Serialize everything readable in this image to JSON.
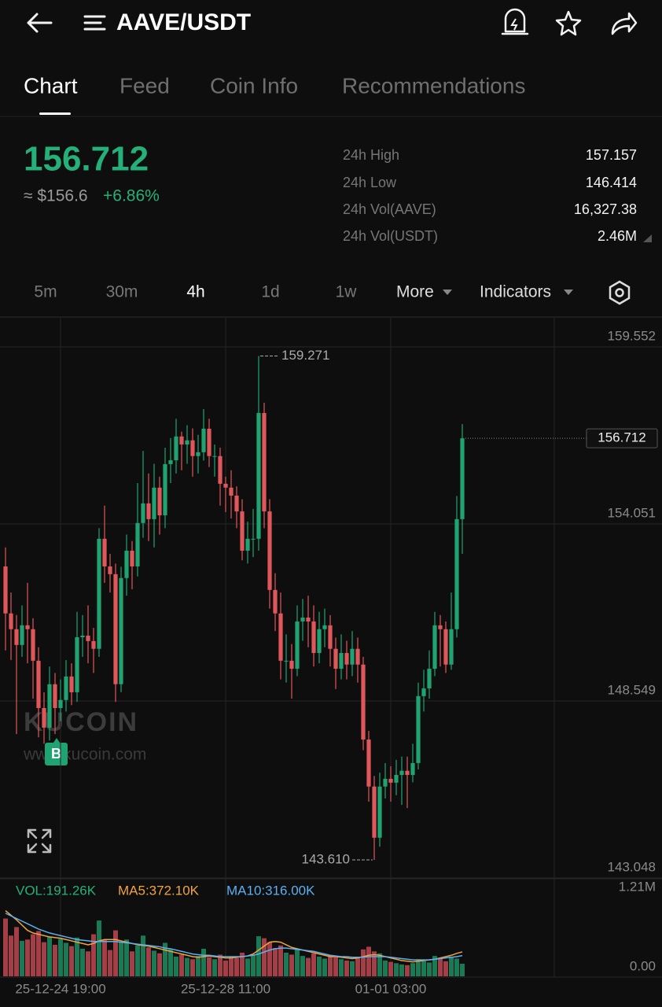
{
  "header": {
    "title": "AAVE/USDT"
  },
  "tabs": [
    "Chart",
    "Feed",
    "Coin Info",
    "Recommendations"
  ],
  "ticker": {
    "price": "156.712",
    "usd_price": "≈ $156.6",
    "change": "+6.86%"
  },
  "stats": [
    {
      "label": "24h High",
      "value": "157.157"
    },
    {
      "label": "24h Low",
      "value": "146.414"
    },
    {
      "label": "24h Vol(AAVE)",
      "value": "16,327.38"
    },
    {
      "label": "24h Vol(USDT)",
      "value": "2.46M"
    }
  ],
  "timeframes": [
    "5m",
    "30m",
    "4h",
    "1d",
    "1w"
  ],
  "menus": [
    "More",
    "Indicators"
  ],
  "watermark": {
    "brand": "KUCOIN",
    "site": "www.kucoin.com"
  },
  "marker": "B",
  "chart_data": [
    {
      "type": "candlestick",
      "categories": [
        null,
        null,
        null,
        null,
        null,
        null,
        null,
        null,
        null,
        null,
        "25-12-24 19:00",
        null,
        null,
        null,
        null,
        null,
        null,
        null,
        null,
        null,
        null,
        null,
        null,
        null,
        null,
        null,
        null,
        null,
        null,
        null,
        null,
        null,
        null,
        null,
        null,
        null,
        null,
        null,
        null,
        null,
        "25-12-28 11:00",
        null,
        null,
        null,
        null,
        null,
        null,
        null,
        null,
        null,
        null,
        null,
        null,
        null,
        null,
        null,
        null,
        null,
        null,
        null,
        null,
        null,
        null,
        null,
        null,
        null,
        null,
        null,
        null,
        null,
        "01-01 03:00",
        null,
        null,
        null,
        null,
        null,
        null,
        null,
        null,
        null,
        null,
        null,
        null,
        null
      ],
      "open": [
        152.73,
        151.27,
        150.78,
        150.29,
        150.9,
        150.78,
        149.8,
        148.33,
        147.72,
        149.07,
        148.33,
        148.58,
        149.31,
        148.82,
        150.53,
        150.58,
        150.41,
        150.17,
        153.59,
        152.73,
        152.49,
        149.07,
        152.37,
        153.22,
        152.73,
        154.08,
        154.69,
        154.2,
        155.18,
        154.32,
        155.91,
        156.03,
        156.77,
        156.52,
        156.65,
        156.16,
        156.28,
        157.01,
        156.16,
        156.16,
        155.3,
        155.18,
        154.93,
        154.44,
        153.22,
        153.59,
        153.59,
        157.5,
        154.44,
        152.0,
        151.27,
        149.8,
        149.8,
        149.55,
        151.02,
        151.14,
        151.02,
        150.04,
        150.78,
        150.9,
        150.17,
        149.55,
        150.04,
        149.68,
        150.17,
        149.68,
        147.35,
        145.89,
        144.3,
        145.89,
        146.13,
        146.01,
        146.25,
        146.38,
        146.25,
        146.62,
        148.7,
        148.94,
        149.55,
        150.9,
        150.78,
        149.68,
        150.78,
        154.2
      ],
      "high": [
        153.32,
        151.92,
        151.22,
        151.52,
        152.22,
        151.12,
        150.22,
        148.82,
        149.62,
        149.42,
        149.22,
        149.82,
        149.72,
        151.32,
        151.22,
        151.52,
        150.82,
        153.92,
        154.62,
        153.12,
        152.82,
        152.72,
        153.72,
        153.52,
        155.32,
        156.32,
        155.62,
        155.92,
        155.52,
        156.42,
        156.72,
        157.32,
        156.92,
        157.12,
        157.02,
        156.82,
        157.62,
        157.32,
        156.52,
        156.42,
        155.52,
        155.72,
        155.22,
        154.82,
        154.12,
        154.52,
        159.271,
        157.82,
        154.82,
        152.52,
        151.92,
        150.62,
        150.32,
        151.52,
        151.72,
        151.82,
        151.52,
        151.32,
        151.42,
        151.22,
        150.52,
        150.62,
        150.42,
        150.72,
        150.52,
        149.92,
        147.62,
        146.22,
        146.32,
        146.62,
        146.52,
        146.72,
        146.82,
        146.82,
        147.22,
        149.12,
        149.52,
        150.12,
        151.32,
        151.22,
        151.02,
        151.92,
        154.92,
        157.157
      ],
      "low": [
        150.12,
        149.82,
        147.52,
        149.92,
        149.72,
        148.62,
        147.42,
        147.22,
        147.32,
        147.52,
        147.92,
        148.22,
        148.42,
        148.52,
        149.92,
        149.72,
        149.42,
        149.92,
        152.22,
        151.92,
        148.52,
        148.82,
        151.82,
        152.02,
        152.42,
        153.62,
        153.52,
        153.32,
        153.72,
        153.92,
        155.32,
        155.62,
        155.72,
        155.92,
        155.52,
        155.62,
        156.02,
        155.82,
        155.52,
        154.62,
        154.42,
        154.22,
        153.92,
        152.92,
        152.82,
        153.02,
        153.22,
        153.92,
        151.42,
        150.72,
        149.22,
        149.12,
        148.62,
        149.32,
        150.42,
        150.22,
        149.62,
        149.72,
        150.22,
        149.62,
        148.92,
        149.22,
        149.22,
        149.32,
        149.12,
        147.02,
        145.42,
        143.61,
        144.02,
        145.52,
        145.42,
        145.62,
        145.32,
        145.22,
        146.02,
        146.42,
        148.22,
        148.62,
        149.32,
        149.62,
        149.42,
        149.52,
        150.52,
        153.12
      ],
      "close": [
        151.27,
        150.78,
        150.29,
        150.9,
        150.78,
        149.8,
        148.33,
        147.72,
        149.07,
        148.33,
        148.58,
        149.31,
        148.82,
        150.53,
        150.58,
        150.41,
        150.17,
        153.59,
        152.73,
        152.49,
        149.07,
        152.37,
        153.22,
        152.73,
        154.08,
        154.69,
        154.2,
        155.18,
        154.32,
        155.91,
        156.03,
        156.77,
        156.52,
        156.65,
        156.16,
        156.28,
        157.01,
        156.16,
        156.16,
        155.3,
        155.18,
        154.93,
        154.44,
        153.22,
        153.59,
        153.59,
        157.5,
        154.44,
        152.0,
        151.27,
        149.8,
        149.8,
        149.55,
        151.02,
        151.14,
        151.02,
        150.04,
        150.78,
        150.9,
        150.17,
        149.55,
        150.04,
        149.68,
        150.17,
        149.68,
        147.35,
        145.89,
        144.3,
        145.89,
        146.13,
        146.01,
        146.25,
        146.38,
        146.25,
        146.62,
        148.7,
        148.94,
        149.55,
        150.9,
        150.78,
        149.68,
        150.78,
        154.2,
        156.712
      ],
      "up_color": "#1fa373",
      "down_color": "#e0575b",
      "ylim": [
        143.048,
        160.481
      ],
      "yticks": [
        159.552,
        154.051,
        148.549,
        143.048
      ],
      "grid": true,
      "high_marker": 159.271,
      "low_marker": {
        "value": 143.61,
        "label": "143.610"
      },
      "last_price": 156.712
    },
    {
      "type": "bar",
      "series": [
        {
          "name": "VOL:191.26K",
          "color": "#25b07a",
          "bar_up_color": "#1b7a56",
          "bar_down_color": "#a43f48",
          "values": [
            880000,
            620000,
            750000,
            540000,
            560000,
            640000,
            690000,
            520000,
            600000,
            480000,
            570000,
            510000,
            460000,
            590000,
            420000,
            380000,
            640000,
            850000,
            560000,
            400000,
            700000,
            520000,
            560000,
            380000,
            470000,
            620000,
            440000,
            390000,
            350000,
            510000,
            420000,
            300000,
            330000,
            280000,
            260000,
            310000,
            420000,
            290000,
            260000,
            330000,
            240000,
            300000,
            280000,
            360000,
            270000,
            320000,
            610000,
            580000,
            520000,
            430000,
            470000,
            360000,
            330000,
            420000,
            310000,
            280000,
            350000,
            300000,
            270000,
            320000,
            290000,
            260000,
            240000,
            230000,
            280000,
            410000,
            450000,
            380000,
            350000,
            240000,
            220000,
            200000,
            180000,
            170000,
            200000,
            260000,
            230000,
            210000,
            310000,
            280000,
            230000,
            300000,
            270000,
            191260
          ]
        },
        {
          "name": "MA5:372.10K",
          "color": "#f0a53a",
          "type": "line",
          "values": [
            1000000,
            930000,
            860000,
            780000,
            700000,
            660000,
            640000,
            620000,
            600000,
            590000,
            580000,
            560000,
            540000,
            520000,
            500000,
            480000,
            500000,
            540000,
            560000,
            560000,
            560000,
            540000,
            520000,
            500000,
            480000,
            470000,
            460000,
            440000,
            420000,
            400000,
            380000,
            360000,
            340000,
            320000,
            300000,
            290000,
            300000,
            310000,
            300000,
            290000,
            280000,
            280000,
            290000,
            300000,
            310000,
            340000,
            400000,
            460000,
            520000,
            530000,
            520000,
            480000,
            440000,
            420000,
            400000,
            380000,
            360000,
            340000,
            320000,
            300000,
            300000,
            290000,
            280000,
            270000,
            280000,
            300000,
            320000,
            330000,
            320000,
            300000,
            280000,
            260000,
            240000,
            230000,
            220000,
            230000,
            240000,
            250000,
            260000,
            280000,
            300000,
            320000,
            350000,
            372100
          ]
        },
        {
          "name": "MA10:316.00K",
          "color": "#5ab0f0",
          "type": "line",
          "values": [
            960000,
            920000,
            880000,
            840000,
            800000,
            760000,
            720000,
            690000,
            660000,
            640000,
            620000,
            600000,
            580000,
            560000,
            550000,
            540000,
            530000,
            530000,
            530000,
            530000,
            530000,
            520000,
            510000,
            500000,
            490000,
            480000,
            470000,
            460000,
            450000,
            430000,
            420000,
            400000,
            380000,
            360000,
            340000,
            330000,
            320000,
            320000,
            310000,
            300000,
            300000,
            300000,
            300000,
            300000,
            310000,
            320000,
            340000,
            370000,
            400000,
            420000,
            430000,
            430000,
            420000,
            410000,
            400000,
            390000,
            380000,
            360000,
            340000,
            320000,
            310000,
            300000,
            300000,
            290000,
            290000,
            290000,
            300000,
            300000,
            300000,
            300000,
            290000,
            280000,
            270000,
            260000,
            250000,
            250000,
            250000,
            250000,
            260000,
            270000,
            280000,
            290000,
            300000,
            316000
          ]
        }
      ],
      "ylim": [
        0,
        1210000
      ],
      "yticks": [
        {
          "value": 1210000,
          "label": "1.21M"
        },
        {
          "value": 0,
          "label": "0.00"
        }
      ]
    }
  ]
}
